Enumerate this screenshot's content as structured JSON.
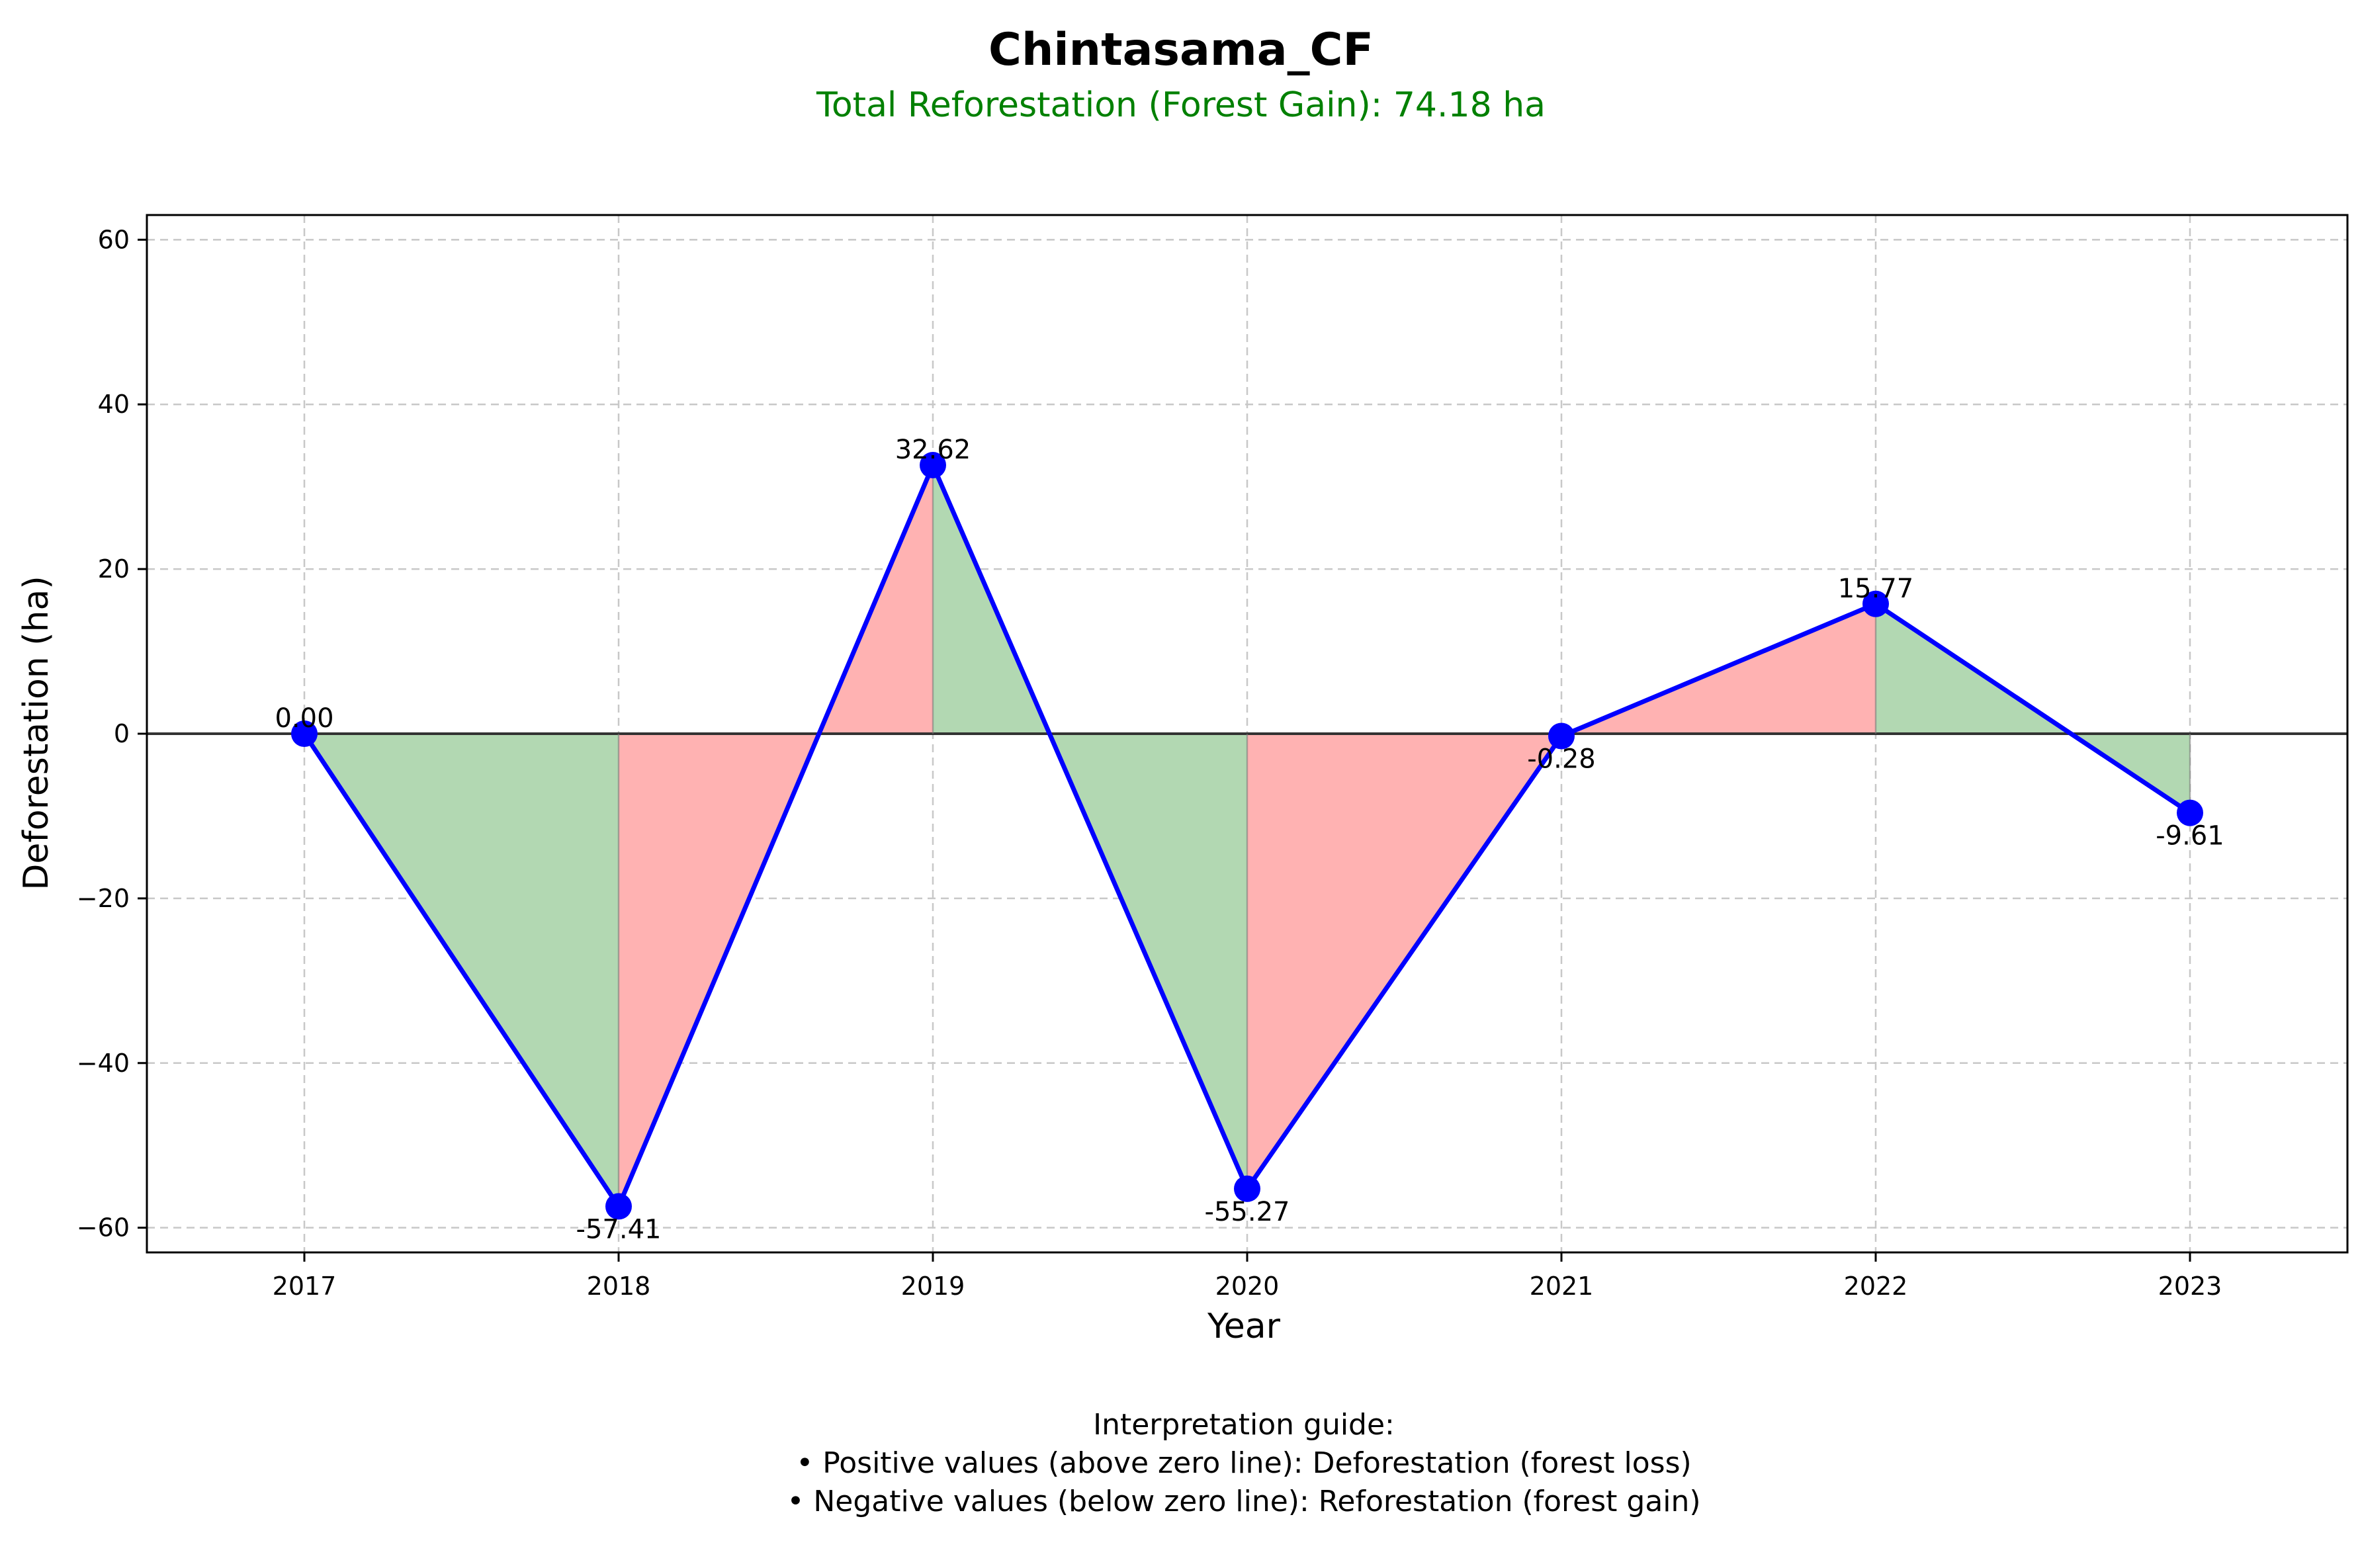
{
  "chart_data": {
    "type": "line",
    "title": "Chintasama_CF",
    "subtitle": "Total Reforestation (Forest Gain): 74.18 ha",
    "xlabel": "Year",
    "ylabel": "Deforestation (ha)",
    "x": [
      "2017",
      "2018",
      "2019",
      "2020",
      "2021",
      "2022",
      "2023"
    ],
    "series": [
      {
        "values": [
          0.0,
          -57.41,
          32.62,
          -55.27,
          -0.28,
          15.77,
          -9.61
        ]
      }
    ],
    "data_labels": [
      "0.00",
      "-57.41",
      "32.62",
      "-55.27",
      "-0.28",
      "15.77",
      "-9.61"
    ],
    "ylim": [
      -63,
      63
    ],
    "yticks": [
      60,
      40,
      20,
      0,
      -20,
      -40,
      -60
    ],
    "ytick_labels": [
      "60",
      "40",
      "20",
      "0",
      "−20",
      "−40",
      "−60"
    ],
    "grid": true,
    "zero_line": true,
    "fill_gain_color": "#b2d8b2",
    "fill_loss_color": "#ffb2b2",
    "line_color": "#0000ff",
    "subtitle_color": "#008000",
    "annotations": [
      "Interpretation guide:",
      "• Positive values (above zero line): Deforestation (forest loss)",
      "• Negative values (below zero line): Reforestation (forest gain)"
    ]
  }
}
